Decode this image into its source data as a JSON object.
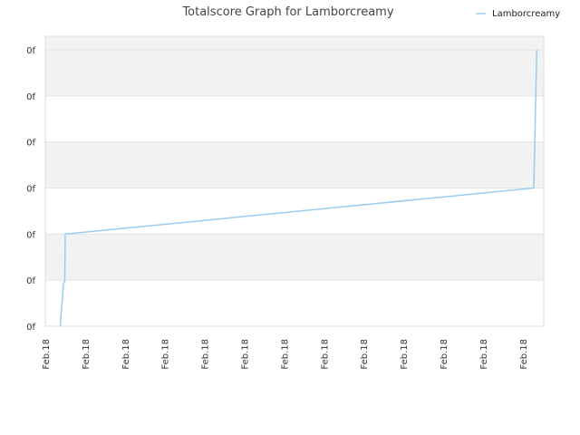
{
  "chart_data": {
    "type": "line",
    "title": "Totalscore Graph for Lamborcreamy",
    "xlabel": "",
    "ylabel": "",
    "legend": {
      "position": "top-right",
      "entries": [
        "Lamborcreamy"
      ]
    },
    "x_tick_labels": [
      "Feb.18",
      "Feb.18",
      "Feb.18",
      "Feb.18",
      "Feb.18",
      "Feb.18",
      "Feb.18",
      "Feb.18",
      "Feb.18",
      "Feb.18",
      "Feb.18",
      "Feb.18",
      "Feb.18"
    ],
    "y_tick_labels": [
      "0f",
      "0f",
      "0f",
      "0f",
      "0f",
      "0f",
      "0f"
    ],
    "xlim": [
      0,
      100
    ],
    "ylim": [
      0,
      6
    ],
    "grid": "alternating horizontal bands",
    "series": [
      {
        "name": "Lamborcreamy",
        "color": "#99ccee",
        "x": [
          3.0,
          3.2,
          3.4,
          3.6,
          3.9,
          4.0,
          98.0,
          98.2,
          98.4,
          98.6
        ],
        "y": [
          0.0,
          0.35,
          0.55,
          0.9,
          1.0,
          2.0,
          3.0,
          4.0,
          5.0,
          6.0
        ]
      }
    ]
  },
  "colors": {
    "band": "#f2f2f2",
    "plot_border": "#dddddd",
    "line": "#99ccee"
  }
}
